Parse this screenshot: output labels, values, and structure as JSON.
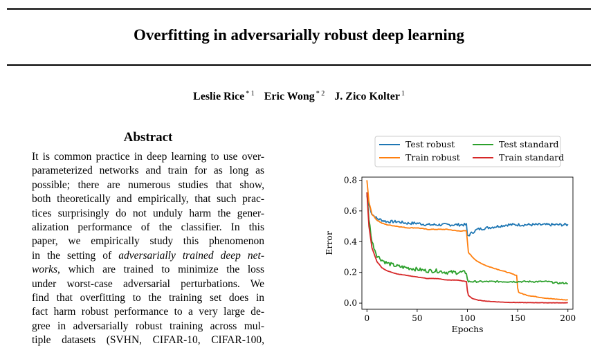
{
  "paper": {
    "title": "Overfitting in adversarially robust deep learning",
    "authors": [
      {
        "name": "Leslie Rice",
        "mark": "* 1"
      },
      {
        "name": "Eric Wong",
        "mark": "* 2"
      },
      {
        "name": "J. Zico Kolter",
        "mark": "1"
      }
    ],
    "abstract_heading": "Abstract",
    "abstract_lines": [
      [
        {
          "t": "It is common practice in deep learning to use over-"
        }
      ],
      [
        {
          "t": "parameterized networks and train for as long as"
        }
      ],
      [
        {
          "t": "possible; there are numerous studies that show,"
        }
      ],
      [
        {
          "t": "both theoretically and empirically, that such prac-"
        }
      ],
      [
        {
          "t": "tices surprisingly do not unduly harm the gener-"
        }
      ],
      [
        {
          "t": "alization performance of the classifier.  In this"
        }
      ],
      [
        {
          "t": "paper, we empirically study this phenomenon"
        }
      ],
      [
        {
          "t": "in the setting of "
        },
        {
          "t": "adversarially trained deep net-",
          "i": true
        }
      ],
      [
        {
          "t": "works",
          "i": true
        },
        {
          "t": ", which are trained to minimize the loss"
        }
      ],
      [
        {
          "t": "under worst-case adversarial perturbations.  We"
        }
      ],
      [
        {
          "t": "find that overfitting to the training set does in"
        }
      ],
      [
        {
          "t": "fact harm robust performance to a very large de-"
        }
      ],
      [
        {
          "t": "gree in adversarially robust training across mul-"
        }
      ],
      [
        {
          "t": "tiple datasets (SVHN, CIFAR-10, CIFAR-100,"
        }
      ]
    ]
  },
  "chart_data": {
    "type": "line",
    "xlabel": "Epochs",
    "ylabel": "Error",
    "xlim": [
      -5,
      205
    ],
    "ylim": [
      -0.04,
      0.82
    ],
    "xticks": [
      0,
      50,
      100,
      150,
      200
    ],
    "yticks": [
      0.0,
      0.2,
      0.4,
      0.6,
      0.8
    ],
    "legend": {
      "placement": "top (above axes)",
      "columns": 2
    },
    "series": [
      {
        "name": "Test robust",
        "color": "#1f77b4",
        "x": [
          0,
          2,
          5,
          10,
          15,
          20,
          30,
          40,
          50,
          60,
          70,
          80,
          90,
          99,
          100,
          101,
          105,
          110,
          120,
          130,
          140,
          150,
          160,
          170,
          180,
          190,
          200
        ],
        "y": [
          0.7,
          0.64,
          0.58,
          0.55,
          0.54,
          0.53,
          0.53,
          0.52,
          0.52,
          0.51,
          0.51,
          0.51,
          0.51,
          0.51,
          0.44,
          0.44,
          0.46,
          0.48,
          0.49,
          0.5,
          0.51,
          0.51,
          0.51,
          0.51,
          0.51,
          0.51,
          0.51
        ]
      },
      {
        "name": "Train robust",
        "color": "#ff7f0e",
        "x": [
          0,
          2,
          5,
          10,
          15,
          20,
          30,
          40,
          50,
          60,
          70,
          80,
          90,
          99,
          100,
          101,
          105,
          110,
          120,
          130,
          140,
          149,
          150,
          151,
          155,
          160,
          170,
          180,
          190,
          200
        ],
        "y": [
          0.8,
          0.66,
          0.58,
          0.54,
          0.52,
          0.51,
          0.5,
          0.49,
          0.49,
          0.48,
          0.48,
          0.48,
          0.47,
          0.47,
          0.4,
          0.33,
          0.3,
          0.27,
          0.24,
          0.22,
          0.2,
          0.18,
          0.1,
          0.07,
          0.06,
          0.05,
          0.04,
          0.03,
          0.025,
          0.02
        ]
      },
      {
        "name": "Test standard",
        "color": "#2ca02c",
        "x": [
          0,
          2,
          5,
          10,
          15,
          20,
          30,
          40,
          50,
          60,
          70,
          80,
          90,
          99,
          100,
          101,
          105,
          110,
          120,
          130,
          140,
          150,
          160,
          170,
          180,
          190,
          200
        ],
        "y": [
          0.72,
          0.55,
          0.4,
          0.31,
          0.28,
          0.26,
          0.24,
          0.23,
          0.22,
          0.21,
          0.21,
          0.2,
          0.2,
          0.2,
          0.15,
          0.14,
          0.14,
          0.14,
          0.14,
          0.14,
          0.14,
          0.14,
          0.14,
          0.14,
          0.14,
          0.13,
          0.13
        ]
      },
      {
        "name": "Train standard",
        "color": "#d62728",
        "x": [
          0,
          2,
          5,
          10,
          15,
          20,
          30,
          40,
          50,
          60,
          70,
          80,
          90,
          99,
          100,
          101,
          105,
          110,
          120,
          130,
          140,
          150,
          160,
          170,
          180,
          190,
          200
        ],
        "y": [
          0.72,
          0.5,
          0.36,
          0.27,
          0.23,
          0.21,
          0.19,
          0.18,
          0.17,
          0.16,
          0.16,
          0.15,
          0.15,
          0.14,
          0.08,
          0.05,
          0.03,
          0.02,
          0.012,
          0.008,
          0.005,
          0.004,
          0.003,
          0.003,
          0.002,
          0.002,
          0.002
        ]
      }
    ]
  }
}
